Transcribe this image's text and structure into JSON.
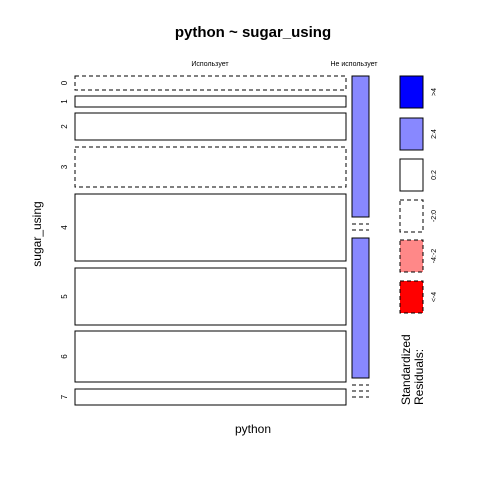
{
  "chart_data": {
    "type": "mosaic",
    "title": "python ~ sugar_using",
    "xlabel": "python",
    "ylabel": "sugar_using",
    "columns": [
      "Использует",
      "Не использует"
    ],
    "rows": [
      "0",
      "1",
      "2",
      "3",
      "4",
      "5",
      "6",
      "7"
    ],
    "residual_signs": [
      [
        "neg",
        "pos"
      ],
      [
        "pos",
        "neg"
      ],
      [
        "pos",
        "neg"
      ],
      [
        "neg",
        "pos"
      ],
      [
        "pos",
        "neg"
      ],
      [
        "pos",
        "pos"
      ],
      [
        "pos",
        "neg"
      ],
      [
        "pos",
        "neg"
      ]
    ],
    "shading": [
      [
        "none",
        "2:4"
      ],
      [
        "none",
        "none"
      ],
      [
        "none",
        "none"
      ],
      [
        "none",
        "none"
      ],
      [
        "none",
        "none"
      ],
      [
        "none",
        "2:4"
      ],
      [
        "none",
        "2:4"
      ],
      [
        "none",
        "none"
      ]
    ],
    "empty_cells": [
      [
        1,
        1
      ],
      [
        2,
        1
      ],
      [
        3,
        1
      ],
      [
        4,
        1
      ],
      [
        6,
        1
      ],
      [
        7,
        1
      ]
    ],
    "legend": {
      "title": "Standardized Residuals:",
      "entries": [
        {
          "label": ">4",
          "color": "#0000ff",
          "dashed": false
        },
        {
          "label": "2:4",
          "color": "#8888ff",
          "dashed": false
        },
        {
          "label": "0:2",
          "color": "#ffffff",
          "dashed": false
        },
        {
          "label": "-2:0",
          "color": "#ffffff",
          "dashed": true
        },
        {
          "label": "-4:-2",
          "color": "#ff8888",
          "dashed": true
        },
        {
          "label": "<-4",
          "color": "#ff0000",
          "dashed": true
        }
      ]
    },
    "colors": {
      "none": "#ffffff",
      "2:4": "#8888ff"
    }
  }
}
